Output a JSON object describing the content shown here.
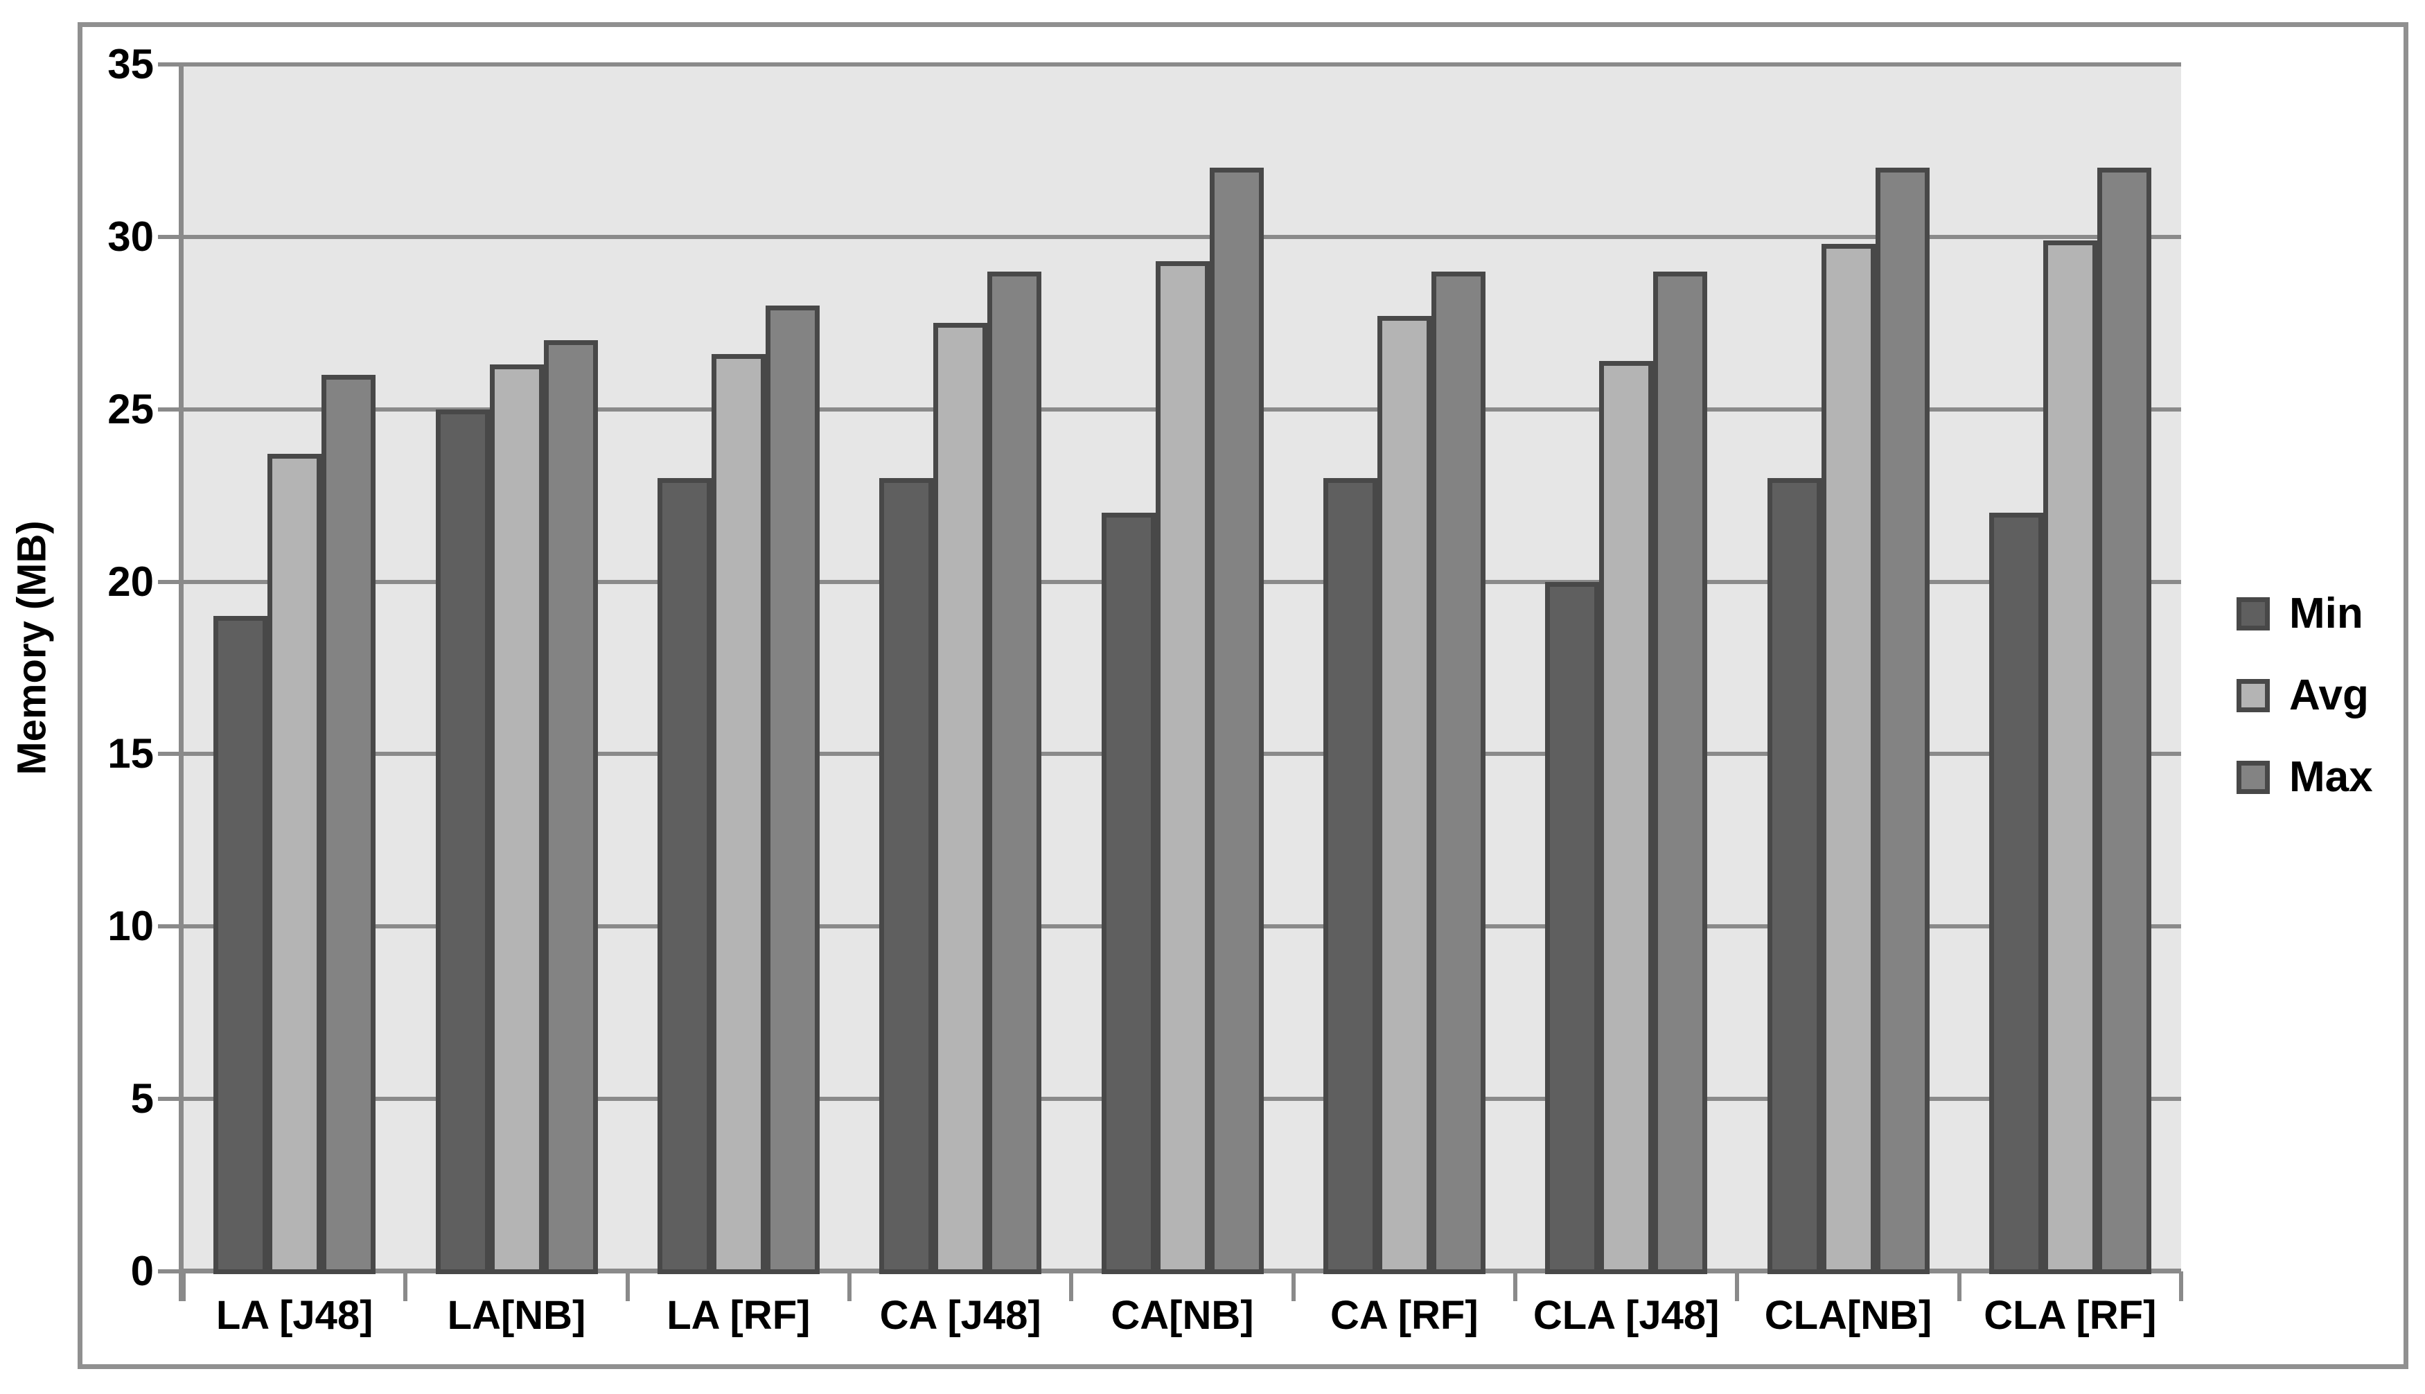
{
  "chart_data": {
    "type": "bar",
    "title": "",
    "xlabel": "",
    "ylabel": "Memory (MB)",
    "ylim": [
      0,
      35
    ],
    "yticks": [
      0,
      5,
      10,
      15,
      20,
      25,
      30,
      35
    ],
    "grid": true,
    "legend_position": "right",
    "categories": [
      "LA [J48]",
      "LA[NB]",
      "LA [RF]",
      "CA [J48]",
      "CA[NB]",
      "CA [RF]",
      "CLA [J48]",
      "CLA[NB]",
      "CLA [RF]"
    ],
    "series": [
      {
        "name": "Min",
        "color": "#5f5f5f",
        "values": [
          19,
          25,
          23,
          23,
          22,
          23,
          20,
          23,
          22
        ]
      },
      {
        "name": "Avg",
        "color": "#b4b4b4",
        "values": [
          23.7,
          26.3,
          26.6,
          27.5,
          29.3,
          27.7,
          26.4,
          29.8,
          29.9
        ]
      },
      {
        "name": "Max",
        "color": "#838383",
        "values": [
          26,
          27,
          28,
          29,
          32,
          29,
          29,
          32,
          32
        ]
      }
    ],
    "colors": {
      "plot_background": "#e6e6e6",
      "gridline": "#8a8a8a",
      "axis": "#8a8a8a",
      "frame_border": "#909090",
      "bar_border": "#484848",
      "text": "#000000",
      "page_background": "#ffffff"
    }
  }
}
